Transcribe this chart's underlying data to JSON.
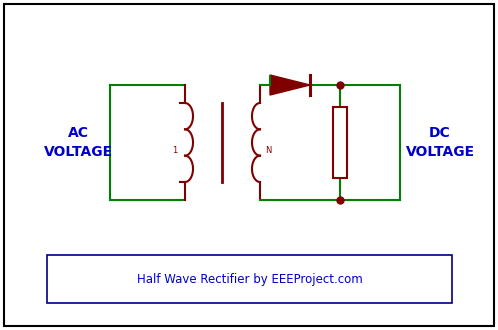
{
  "bg_color": "#ffffff",
  "border_color": "#000000",
  "circuit_color": "#008000",
  "component_color": "#800000",
  "dot_color": "#800000",
  "text_color_blue": "#0000CC",
  "title_text": "Half Wave Rectifier by EEEProject.com",
  "ac_label": "AC\nVOLTAGE",
  "dc_label": "DC\nVOLTAGE",
  "figsize": [
    4.98,
    3.3
  ],
  "dpi": 100
}
